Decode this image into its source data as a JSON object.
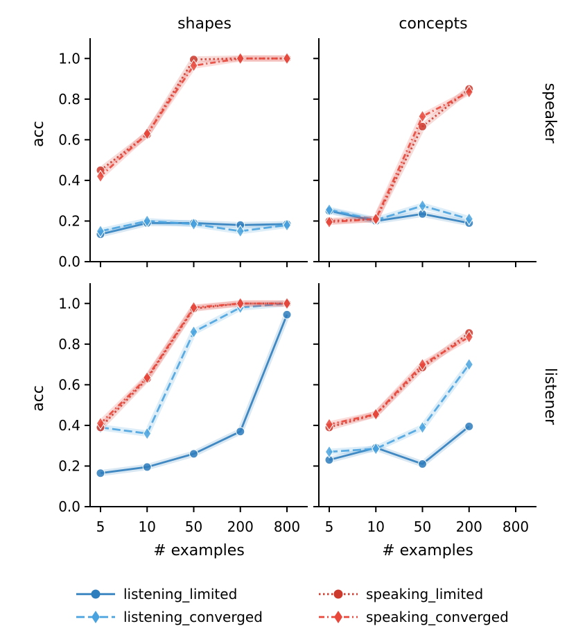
{
  "chart_data": {
    "type": "line",
    "facets": {
      "columns": [
        "shapes",
        "concepts"
      ],
      "rows": [
        "speaker",
        "listener"
      ]
    },
    "x_categories": [
      "5",
      "10",
      "50",
      "200",
      "800"
    ],
    "xlabel": "# examples",
    "ylabel": "acc",
    "ylim": [
      0.0,
      1.1
    ],
    "yticks": [
      "0.0",
      "0.2",
      "0.4",
      "0.6",
      "0.8",
      "1.0"
    ],
    "series_styles": [
      {
        "name": "listening_limited",
        "color": "#2e7dbc",
        "marker": "circle",
        "dash": "solid"
      },
      {
        "name": "listening_converged",
        "color": "#4aa3df",
        "marker": "diamond",
        "dash": "dashed"
      },
      {
        "name": "speaking_limited",
        "color": "#cc3a2e",
        "marker": "circle",
        "dash": "dotted"
      },
      {
        "name": "speaking_converged",
        "color": "#e8483c",
        "marker": "diamond",
        "dash": "dashdot"
      }
    ],
    "panels": [
      {
        "row": "speaker",
        "column": "shapes",
        "series": [
          {
            "name": "listening_limited",
            "values": [
              0.135,
              0.19,
              0.19,
              0.18,
              0.185
            ]
          },
          {
            "name": "listening_converged",
            "values": [
              0.15,
              0.2,
              0.185,
              0.15,
              0.18
            ]
          },
          {
            "name": "speaking_limited",
            "values": [
              0.45,
              0.625,
              0.995,
              1.0,
              1.0
            ]
          },
          {
            "name": "speaking_converged",
            "values": [
              0.42,
              0.63,
              0.965,
              1.0,
              1.0
            ]
          }
        ]
      },
      {
        "row": "speaker",
        "column": "concepts",
        "series": [
          {
            "name": "listening_limited",
            "values": [
              0.25,
              0.2,
              0.235,
              0.19,
              null
            ]
          },
          {
            "name": "listening_converged",
            "values": [
              0.255,
              0.205,
              0.275,
              0.21,
              null
            ]
          },
          {
            "name": "speaking_limited",
            "values": [
              0.2,
              0.21,
              0.665,
              0.85,
              null
            ]
          },
          {
            "name": "speaking_converged",
            "values": [
              0.195,
              0.21,
              0.715,
              0.835,
              null
            ]
          }
        ]
      },
      {
        "row": "listener",
        "column": "shapes",
        "series": [
          {
            "name": "listening_limited",
            "values": [
              0.165,
              0.195,
              0.26,
              0.37,
              0.945
            ]
          },
          {
            "name": "listening_converged",
            "values": [
              0.39,
              0.36,
              0.86,
              0.98,
              1.0
            ]
          },
          {
            "name": "speaking_limited",
            "values": [
              0.39,
              0.63,
              0.975,
              1.0,
              1.0
            ]
          },
          {
            "name": "speaking_converged",
            "values": [
              0.41,
              0.635,
              0.98,
              1.0,
              1.0
            ]
          }
        ]
      },
      {
        "row": "listener",
        "column": "concepts",
        "series": [
          {
            "name": "listening_limited",
            "values": [
              0.23,
              0.29,
              0.21,
              0.395,
              null
            ]
          },
          {
            "name": "listening_converged",
            "values": [
              0.27,
              0.285,
              0.39,
              0.7,
              null
            ]
          },
          {
            "name": "speaking_limited",
            "values": [
              0.39,
              0.455,
              0.685,
              0.855,
              null
            ]
          },
          {
            "name": "speaking_converged",
            "values": [
              0.405,
              0.455,
              0.7,
              0.835,
              null
            ]
          }
        ]
      }
    ],
    "legend": {
      "placement": "bottom",
      "entries": [
        "listening_limited",
        "listening_converged",
        "speaking_limited",
        "speaking_converged"
      ]
    }
  }
}
